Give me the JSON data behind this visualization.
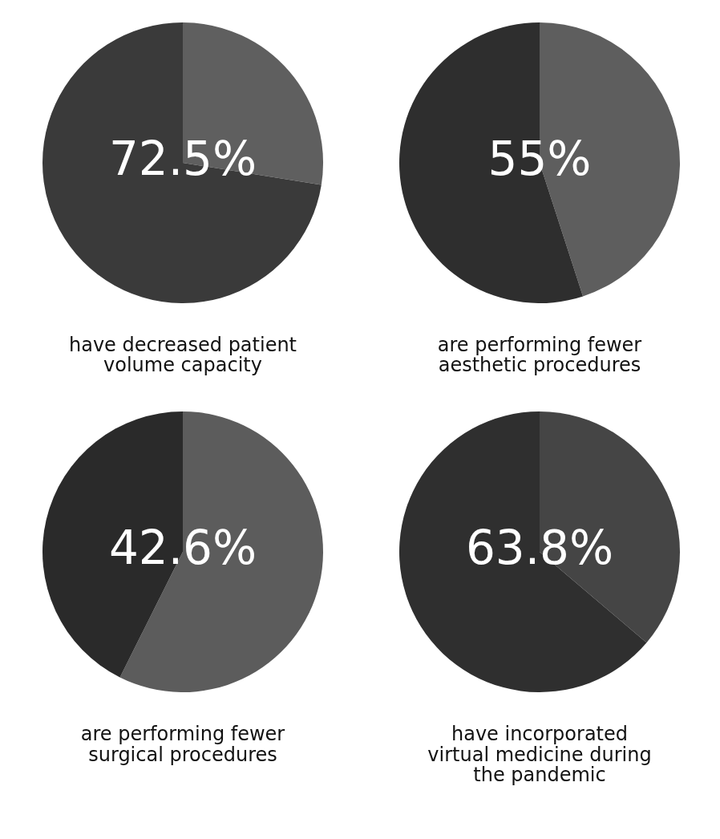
{
  "chart_data": [
    {
      "type": "pie",
      "title": "have decreased patient volume capacity",
      "categories": [
        null,
        null
      ],
      "values": [
        27.5,
        72.5
      ],
      "colors": [
        "#5f5f5f",
        "#3a3a3a"
      ],
      "value_labels": [
        null,
        "72.5%"
      ]
    },
    {
      "type": "pie",
      "title": "are performing fewer aesthetic procedures",
      "categories": [
        null,
        null
      ],
      "values": [
        45,
        55
      ],
      "colors": [
        "#5e5e5e",
        "#2e2e2e"
      ],
      "value_labels": [
        null,
        "55%"
      ]
    },
    {
      "type": "pie",
      "title": "are performing fewer surgical procedures",
      "categories": [
        null,
        null
      ],
      "values": [
        57.4,
        42.6
      ],
      "colors": [
        "#5c5c5c",
        "#2a2a2a"
      ],
      "value_labels": [
        null,
        "42.6%"
      ]
    },
    {
      "type": "pie",
      "title": "have incorporated virtual medicine during the pandemic",
      "categories": [
        null,
        null
      ],
      "values": [
        36.2,
        63.8
      ],
      "colors": [
        "#454545",
        "#2f2f2f"
      ],
      "value_labels": [
        null,
        "63.8%"
      ]
    }
  ]
}
